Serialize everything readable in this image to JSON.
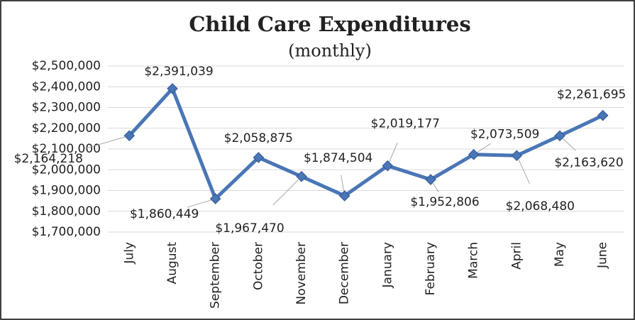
{
  "chart_data": {
    "type": "line",
    "title": "Child Care Expenditures",
    "subtitle": "(monthly)",
    "categories": [
      "July",
      "August",
      "September",
      "October",
      "November",
      "December",
      "January",
      "February",
      "March",
      "April",
      "May",
      "June"
    ],
    "series": [
      {
        "name": "Expenditures",
        "color": "#4a76b5",
        "values": [
          2164218,
          2391039,
          1860449,
          2058875,
          1967470,
          1874504,
          2019177,
          1952806,
          2073509,
          2068480,
          2163620,
          2261695
        ],
        "value_labels": [
          "$2,164,218",
          "$2,391,039",
          "$1,860,449",
          "$2,058,875",
          "$1,967,470",
          "$1,874,504",
          "$2,019,177",
          "$1,952,806",
          "$2,073,509",
          "$2,068,480",
          "$2,163,620",
          "$2,261,695"
        ]
      }
    ],
    "ylim": [
      1700000,
      2500000
    ],
    "yticks": [
      {
        "value": 1700000,
        "label": "$1,700,000"
      },
      {
        "value": 1800000,
        "label": "$1,800,000"
      },
      {
        "value": 1900000,
        "label": "$1,900,000"
      },
      {
        "value": 2000000,
        "label": "$2,000,000"
      },
      {
        "value": 2100000,
        "label": "$2,100,000"
      },
      {
        "value": 2200000,
        "label": "$2,200,000"
      },
      {
        "value": 2300000,
        "label": "$2,300,000"
      },
      {
        "value": 2400000,
        "label": "$2,400,000"
      },
      {
        "value": 2500000,
        "label": "$2,500,000"
      }
    ],
    "grid": true
  }
}
